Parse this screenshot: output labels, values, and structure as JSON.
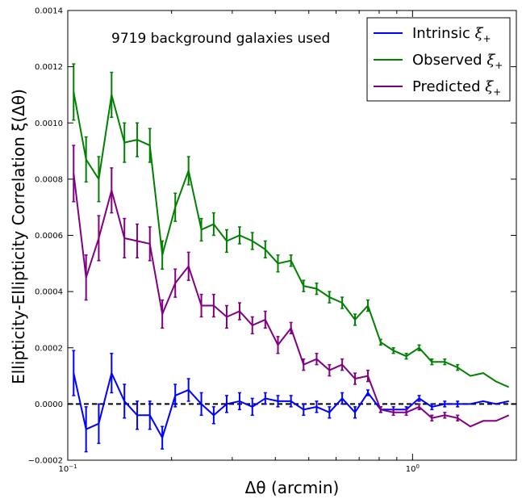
{
  "chart_data": {
    "type": "line",
    "xscale": "log",
    "xlabel": "Δθ (arcmin)",
    "ylabel": "Ellipticity-Ellipticity Correlation ξ(Δθ)",
    "xlim": [
      0.1,
      2.0
    ],
    "ylim": [
      -0.0002,
      0.0014
    ],
    "annotation": "9719 background galaxies used",
    "legend_position": "top-right",
    "reference_line": {
      "y": 0.0,
      "style": "dashed",
      "color": "#000000"
    },
    "y_ticks": [
      "−0.0002",
      "0.0000",
      "0.0002",
      "0.0004",
      "0.0006",
      "0.0008",
      "0.0010",
      "0.0012",
      "0.0014"
    ],
    "y_tick_values": [
      -0.0002,
      0.0,
      0.0002,
      0.0004,
      0.0006,
      0.0008,
      0.001,
      0.0012,
      0.0014
    ],
    "x_ticks": [
      {
        "value": 0.1,
        "label_base": "10",
        "label_exp": "−1"
      },
      {
        "value": 1.0,
        "label_base": "10",
        "label_exp": "0"
      }
    ],
    "x": [
      0.104,
      0.113,
      0.123,
      0.134,
      0.146,
      0.159,
      0.173,
      0.188,
      0.205,
      0.224,
      0.244,
      0.265,
      0.289,
      0.315,
      0.343,
      0.374,
      0.407,
      0.444,
      0.483,
      0.527,
      0.574,
      0.625,
      0.681,
      0.742,
      0.808,
      0.88,
      0.959,
      1.045,
      1.138,
      1.24,
      1.351,
      1.471,
      1.603,
      1.746,
      1.902
    ],
    "series": [
      {
        "name": "Intrinsic ξ+",
        "label_main": "Intrinsic ",
        "label_symbol": "ξ",
        "label_sub": "+",
        "color": "#0000ff",
        "values": [
          0.00011,
          -9e-05,
          -7e-05,
          0.00011,
          1e-05,
          -4e-05,
          -4e-05,
          -0.00012,
          3e-05,
          5e-05,
          0.0,
          -4e-05,
          0.0,
          1e-05,
          -1e-05,
          2e-05,
          1e-05,
          1e-05,
          -2e-05,
          -1e-05,
          -3e-05,
          2e-05,
          -3e-05,
          4e-05,
          -2e-05,
          -2e-05,
          -2e-05,
          2e-05,
          -1e-05,
          0.0,
          0.0,
          0.0,
          1e-05,
          0.0,
          1e-05
        ],
        "errors": [
          8e-05,
          8e-05,
          7e-05,
          7e-05,
          6e-05,
          5e-05,
          5e-05,
          4e-05,
          4e-05,
          4e-05,
          4e-05,
          3e-05,
          3e-05,
          3e-05,
          3e-05,
          2e-05,
          2e-05,
          2e-05,
          2e-05,
          2e-05,
          2e-05,
          2e-05,
          2e-05,
          1e-05,
          1e-05,
          1e-05,
          1e-05,
          1e-05,
          1e-05,
          1e-05,
          1e-05,
          0.0,
          0.0,
          0.0,
          0.0
        ]
      },
      {
        "name": "Observed ξ+",
        "label_main": "Observed ",
        "label_symbol": "ξ",
        "label_sub": "+",
        "color": "#008000",
        "values": [
          0.00111,
          0.00087,
          0.0008,
          0.0011,
          0.00093,
          0.00094,
          0.00092,
          0.00053,
          0.0007,
          0.00083,
          0.00062,
          0.00064,
          0.00058,
          0.0006,
          0.00058,
          0.00055,
          0.0005,
          0.00051,
          0.00042,
          0.00041,
          0.00038,
          0.00036,
          0.0003,
          0.00035,
          0.00022,
          0.00019,
          0.00017,
          0.0002,
          0.00015,
          0.00015,
          0.00013,
          0.0001,
          0.00011,
          8e-05,
          6e-05
        ]
      },
      {
        "name": "Predicted ξ+",
        "label_main": "Predicted ",
        "label_symbol": "ξ",
        "label_sub": "+",
        "color": "#800080",
        "values": [
          0.00082,
          0.00045,
          0.00059,
          0.00076,
          0.00059,
          0.00058,
          0.00057,
          0.00032,
          0.00043,
          0.00049,
          0.00035,
          0.00035,
          0.00031,
          0.00033,
          0.00028,
          0.0003,
          0.00021,
          0.00027,
          0.00014,
          0.00016,
          0.00012,
          0.00014,
          9e-05,
          0.0001,
          -2e-05,
          -3e-05,
          -3e-05,
          -1e-05,
          -5e-05,
          -4e-05,
          -5e-05,
          -8e-05,
          -6e-05,
          -6e-05,
          -4e-05
        ]
      }
    ],
    "series_errors": {
      "Observed ξ+": [
        0.0001,
        8e-05,
        8e-05,
        8e-05,
        7e-05,
        6e-05,
        6e-05,
        5e-05,
        5e-05,
        5e-05,
        4e-05,
        4e-05,
        4e-05,
        3e-05,
        3e-05,
        3e-05,
        3e-05,
        2e-05,
        2e-05,
        2e-05,
        2e-05,
        2e-05,
        2e-05,
        2e-05,
        1e-05,
        1e-05,
        1e-05,
        1e-05,
        1e-05,
        1e-05,
        1e-05,
        0.0,
        0.0,
        0.0,
        0.0
      ],
      "Predicted ξ+": [
        0.0001,
        8e-05,
        8e-05,
        8e-05,
        7e-05,
        6e-05,
        6e-05,
        5e-05,
        5e-05,
        5e-05,
        4e-05,
        4e-05,
        4e-05,
        3e-05,
        3e-05,
        3e-05,
        3e-05,
        2e-05,
        2e-05,
        2e-05,
        2e-05,
        2e-05,
        2e-05,
        2e-05,
        1e-05,
        1e-05,
        1e-05,
        1e-05,
        1e-05,
        1e-05,
        1e-05,
        0.0,
        0.0,
        0.0,
        0.0
      ]
    }
  }
}
